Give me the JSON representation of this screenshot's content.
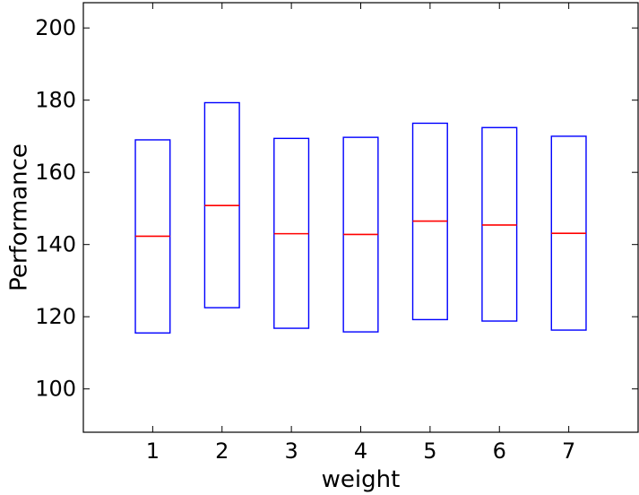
{
  "chart_data": {
    "type": "box",
    "xlabel": "weight",
    "ylabel": "Performance",
    "ylim": [
      88,
      207
    ],
    "yticks": [
      100,
      120,
      140,
      160,
      180,
      200
    ],
    "categories": [
      "1",
      "2",
      "3",
      "4",
      "5",
      "6",
      "7"
    ],
    "boxes": [
      {
        "category": "1",
        "q1": 115.5,
        "median": 142.3,
        "q3": 169.0
      },
      {
        "category": "2",
        "q1": 122.5,
        "median": 150.8,
        "q3": 179.3
      },
      {
        "category": "3",
        "q1": 116.8,
        "median": 143.0,
        "q3": 169.4
      },
      {
        "category": "4",
        "q1": 115.8,
        "median": 142.8,
        "q3": 169.7
      },
      {
        "category": "5",
        "q1": 119.2,
        "median": 146.5,
        "q3": 173.6
      },
      {
        "category": "6",
        "q1": 118.8,
        "median": 145.4,
        "q3": 172.4
      },
      {
        "category": "7",
        "q1": 116.3,
        "median": 143.1,
        "q3": 170.0
      }
    ],
    "grid": false,
    "box_color": "#0000ff",
    "median_color": "#ff0000"
  }
}
